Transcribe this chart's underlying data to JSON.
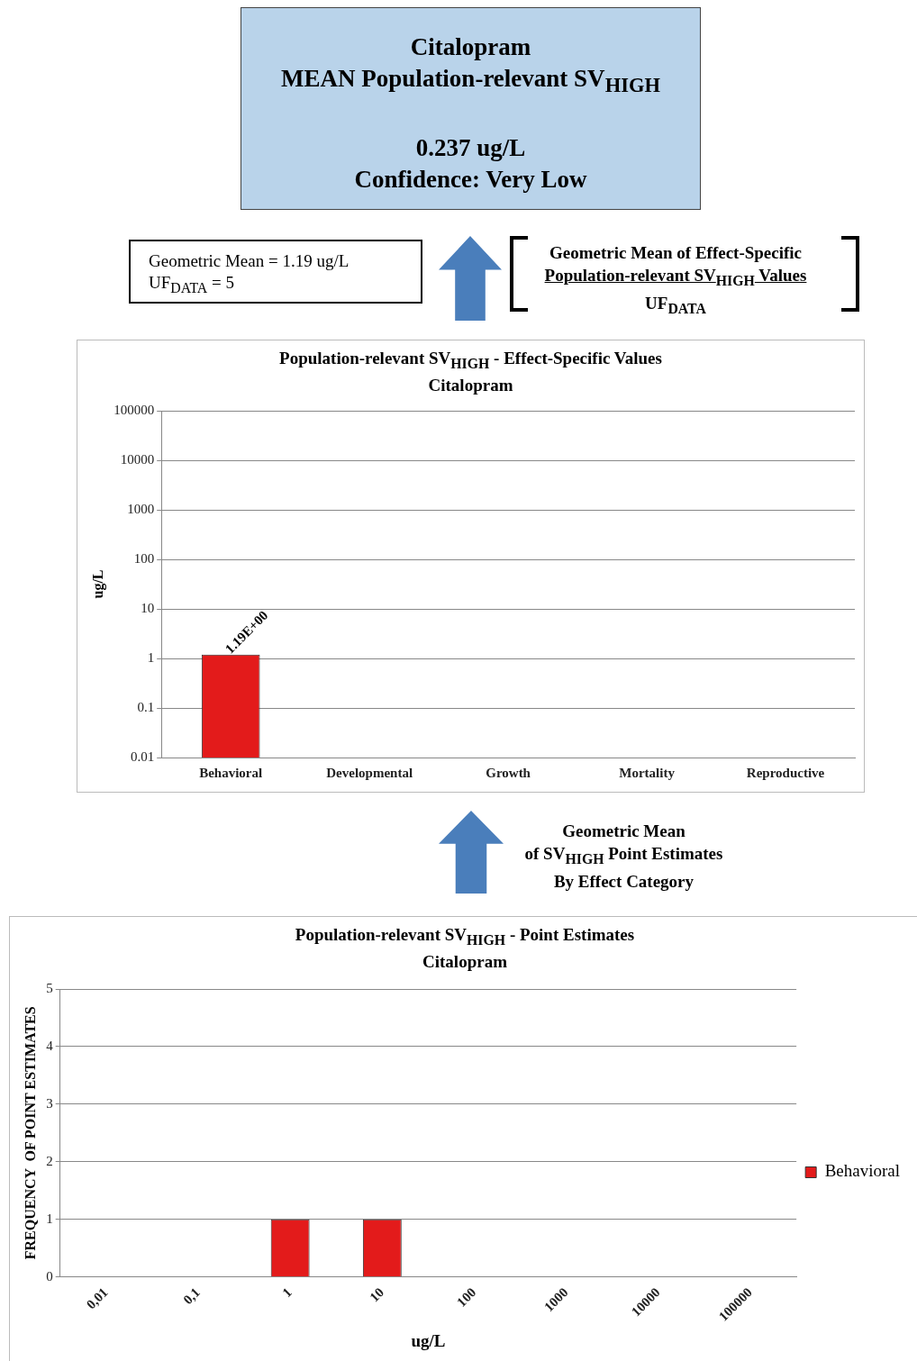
{
  "chart_data": [
    {
      "type": "other",
      "annotations": [
        "Citalopram",
        "MEAN Population-relevant SV$_{HIGH}$",
        "0.237 ug/L",
        "Confidence:  Very Low",
        "Geometric Mean = 1.19 ug/L",
        "UF$_{DATA}$ = 5",
        "Geometric Mean of  Effect-Specific",
        "Population-relevant SV$_{HIGH}$  Values",
        "UF$_{DATA}$",
        "Geometric Mean",
        "of SV$_{HIGH}$ Point Estimates",
        "By Effect Category"
      ]
    },
    {
      "type": "bar",
      "title": "Population-relevant SV$_{HIGH}$  -  Effect-Specific Values",
      "subtitle": "Citalopram",
      "ylabel": "ug/L",
      "categories": [
        "Behavioral",
        "Developmental",
        "Growth",
        "Mortality",
        "Reproductive"
      ],
      "values": [
        1.19,
        null,
        null,
        null,
        null
      ],
      "value_labels": [
        "1.19E+00",
        null,
        null,
        null,
        null
      ],
      "color": "#e31b1b",
      "log": "y",
      "ylim": [
        0.01,
        100000
      ],
      "yticks": [
        0.01,
        0.1,
        1,
        10,
        100,
        1000,
        10000,
        100000
      ],
      "grid": "y"
    },
    {
      "type": "bar",
      "title": "Population-relevant SV$_{HIGH}$  -  Point Estimates",
      "subtitle": "Citalopram",
      "xlabel": "ug/L",
      "ylabel": "FREQUENCY  OF POINT ESTIMATES",
      "categories": [
        "0,01",
        "0,1",
        "1",
        "10",
        "100",
        "1000",
        "10000",
        "100000"
      ],
      "series": [
        {
          "name": "Behavioral",
          "color": "#e31b1b",
          "values": [
            0,
            0,
            1,
            1,
            0,
            0,
            0,
            0
          ]
        }
      ],
      "ylim": [
        0,
        5
      ],
      "yticks": [
        0,
        1,
        2,
        3,
        4,
        5
      ],
      "grid": "y",
      "legend": "right"
    }
  ]
}
